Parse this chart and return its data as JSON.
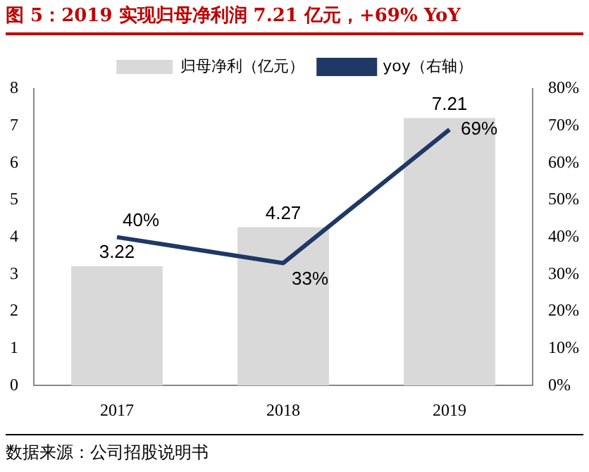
{
  "chart_data": {
    "type": "bar",
    "title": "图 5：2019 实现归母净利润 7.21 亿元，+69% YoY",
    "categories": [
      "2017",
      "2018",
      "2019"
    ],
    "series": [
      {
        "name": "归母净利（亿元）",
        "color": "#d9d9d9",
        "values": [
          3.22,
          4.27,
          7.21
        ]
      },
      {
        "name": "yoy（右轴）",
        "type": "line",
        "axis": "y2",
        "color": "#1f3864",
        "values": [
          40,
          33,
          69
        ],
        "value_labels": [
          "40%",
          "33%",
          "69%"
        ]
      }
    ],
    "ylim": [
      0,
      8
    ],
    "yticks": [
      0,
      1,
      2,
      3,
      4,
      5,
      6,
      7,
      8
    ],
    "y2lim": [
      0,
      80
    ],
    "y2ticks": [
      {
        "value": 0,
        "label": "0%"
      },
      {
        "value": 10,
        "label": "10%"
      },
      {
        "value": 20,
        "label": "20%"
      },
      {
        "value": 30,
        "label": "30%"
      },
      {
        "value": 40,
        "label": "40%"
      },
      {
        "value": 50,
        "label": "50%"
      },
      {
        "value": 60,
        "label": "60%"
      },
      {
        "value": 70,
        "label": "70%"
      },
      {
        "value": 80,
        "label": "80%"
      }
    ],
    "data_labels": true,
    "grid": false,
    "legend": "top",
    "marker": "none",
    "annotations": [
      "数据来源：公司招股说明书"
    ]
  }
}
